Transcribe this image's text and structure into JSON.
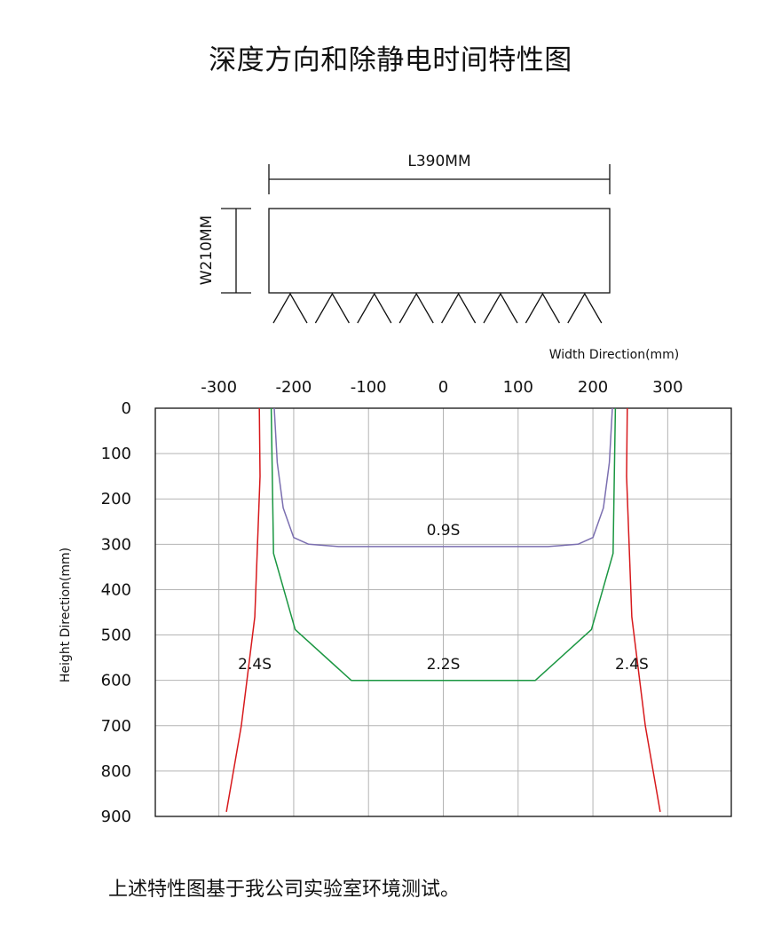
{
  "title": "深度方向和除静电时间特性图",
  "footnote": "上述特性图基于我公司实验室环境测试。",
  "diagram": {
    "length_label": "L390MM",
    "width_label": "W210MM",
    "nozzle_count": 8
  },
  "chart_data": {
    "type": "line",
    "xlabel": "Width Direction(mm)",
    "ylabel": "Height Direction(mm)",
    "x_ticks": [
      -300,
      -200,
      -100,
      0,
      100,
      200,
      300
    ],
    "y_ticks": [
      0,
      100,
      200,
      300,
      400,
      500,
      600,
      700,
      800,
      900
    ],
    "xlim": [
      -385,
      385
    ],
    "ylim": [
      0,
      900
    ],
    "y_inverted": true,
    "grid": true,
    "series": [
      {
        "name": "0.9S",
        "color": "#7b6fb0",
        "points": [
          [
            -226,
            0
          ],
          [
            -222,
            120
          ],
          [
            -214,
            220
          ],
          [
            -200,
            285
          ],
          [
            -180,
            300
          ],
          [
            -140,
            305
          ],
          [
            140,
            305
          ],
          [
            180,
            300
          ],
          [
            200,
            285
          ],
          [
            214,
            220
          ],
          [
            222,
            120
          ],
          [
            226,
            0
          ]
        ]
      },
      {
        "name": "2.2S",
        "color": "#1a9641",
        "points": [
          [
            -230,
            0
          ],
          [
            -227,
            320
          ],
          [
            -198,
            488
          ],
          [
            -123,
            600
          ],
          [
            123,
            600
          ],
          [
            198,
            488
          ],
          [
            227,
            320
          ],
          [
            230,
            0
          ]
        ]
      },
      {
        "name": "2.4S",
        "color": "#d7191c",
        "points": [
          [
            -246,
            0
          ],
          [
            -245,
            150
          ],
          [
            -252,
            460
          ],
          [
            -270,
            700
          ],
          [
            -290,
            890
          ]
        ]
      },
      {
        "name": "2.4S",
        "color": "#d7191c",
        "points": [
          [
            246,
            0
          ],
          [
            245,
            150
          ],
          [
            252,
            460
          ],
          [
            270,
            700
          ],
          [
            290,
            890
          ]
        ]
      }
    ],
    "annotations": [
      {
        "text": "0.9S",
        "x": 0,
        "y": 280
      },
      {
        "text": "2.2S",
        "x": 0,
        "y": 575
      },
      {
        "text": "2.4S",
        "x": -252,
        "y": 575
      },
      {
        "text": "2.4S",
        "x": 252,
        "y": 575
      }
    ]
  }
}
